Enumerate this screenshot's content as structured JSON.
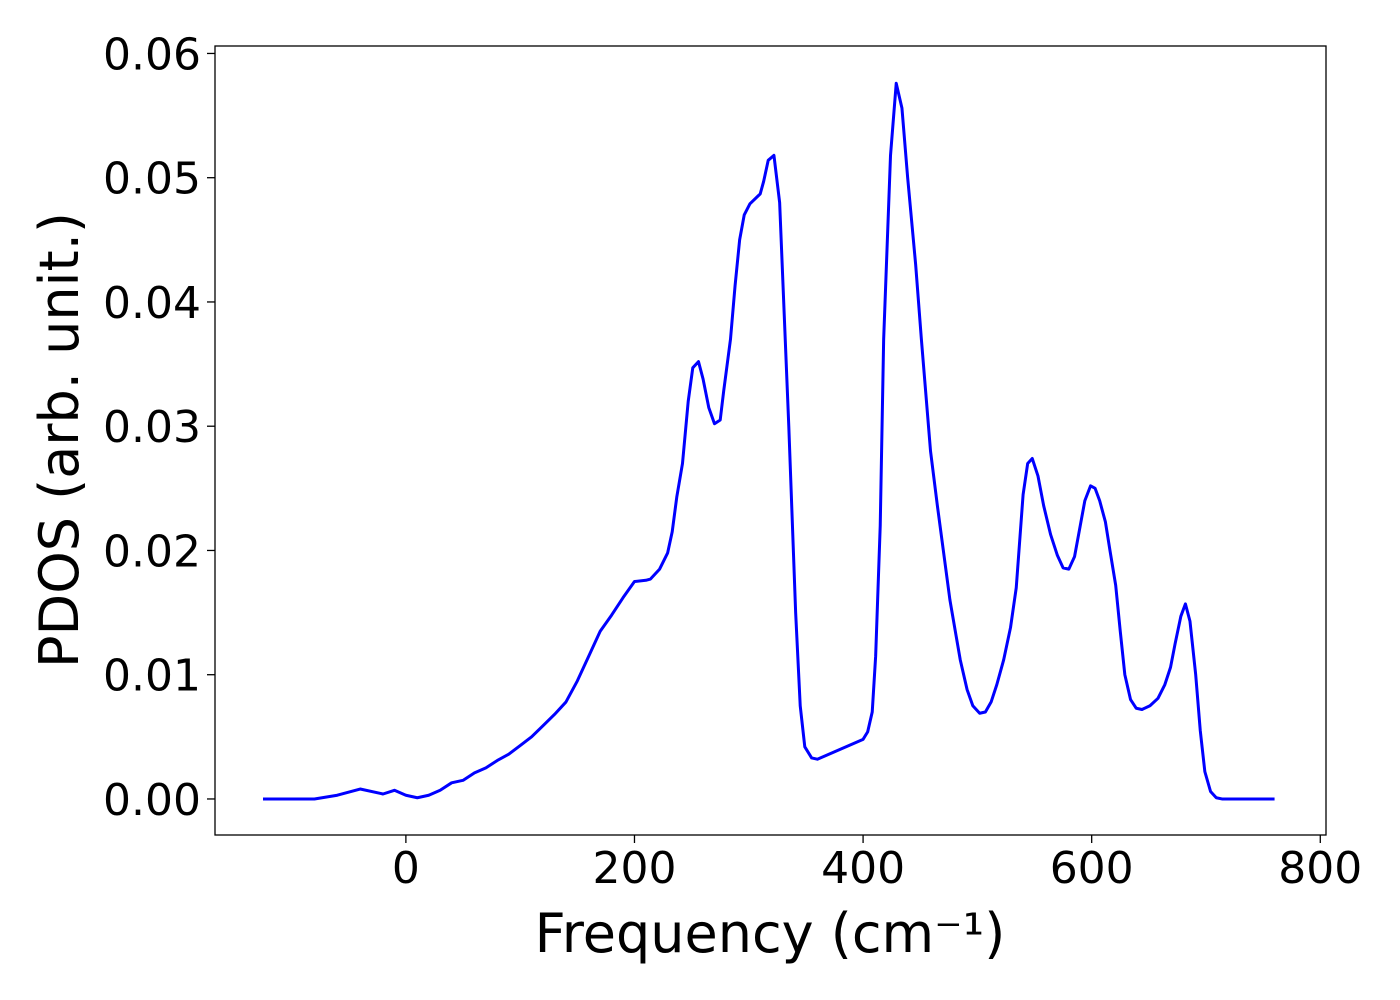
{
  "chart_data": {
    "type": "line",
    "xlabel": "Frequency (cm⁻¹)",
    "ylabel": "PDOS (arb. unit.)",
    "xlim": [
      -167,
      805
    ],
    "ylim": [
      -0.0029,
      0.0606
    ],
    "xticks": [
      0,
      200,
      400,
      600,
      800
    ],
    "yticks": [
      {
        "value": 0,
        "label": "0.00"
      },
      {
        "value": 0.01,
        "label": "0.01"
      },
      {
        "value": 0.02,
        "label": "0.02"
      },
      {
        "value": 0.03,
        "label": "0.03"
      },
      {
        "value": 0.04,
        "label": "0.04"
      },
      {
        "value": 0.05,
        "label": "0.05"
      },
      {
        "value": 0.06,
        "label": "0.06"
      }
    ],
    "series": [
      {
        "color": "#0000ff",
        "x": [
          -125,
          -80,
          -60,
          -40,
          -20,
          -10,
          0,
          10,
          20,
          30,
          40,
          50,
          60,
          70,
          80,
          90,
          100,
          110,
          120,
          130,
          140,
          150,
          160,
          170,
          180,
          190,
          200,
          210,
          214,
          222,
          229,
          233,
          237,
          242,
          247,
          251,
          256,
          260,
          265,
          270,
          275,
          278,
          284,
          288,
          292,
          296,
          301,
          310,
          313,
          317,
          322,
          327,
          331,
          335,
          341,
          345,
          349,
          355,
          360,
          400,
          404,
          408,
          411,
          415,
          418,
          424,
          429,
          434,
          439,
          446,
          451,
          459,
          465,
          476,
          485,
          491,
          496,
          502,
          507,
          512,
          517,
          523,
          529,
          534,
          540,
          544,
          548,
          553,
          558,
          564,
          570,
          575,
          580,
          585,
          590,
          594,
          599,
          603,
          607,
          612,
          616,
          621,
          625,
          629,
          634,
          639,
          644,
          651,
          658,
          664,
          669,
          673,
          678,
          682,
          686,
          691,
          695,
          699,
          704,
          709,
          714,
          760
        ],
        "values": [
          0,
          0,
          0.0003,
          0.0008,
          0.0004,
          0.0007,
          0.0003,
          0.0001,
          0.0003,
          0.0007,
          0.0013,
          0.0015,
          0.0021,
          0.0025,
          0.0031,
          0.0036,
          0.0043,
          0.005,
          0.0059,
          0.0068,
          0.0078,
          0.0095,
          0.0115,
          0.0135,
          0.0148,
          0.0162,
          0.0175,
          0.0176,
          0.0177,
          0.0185,
          0.0198,
          0.0215,
          0.0243,
          0.027,
          0.032,
          0.0347,
          0.0352,
          0.0338,
          0.0315,
          0.0302,
          0.0305,
          0.0328,
          0.037,
          0.0413,
          0.045,
          0.047,
          0.0479,
          0.0487,
          0.0497,
          0.0514,
          0.0518,
          0.048,
          0.039,
          0.03,
          0.015,
          0.0075,
          0.0042,
          0.0033,
          0.0032,
          0.0048,
          0.0054,
          0.007,
          0.0115,
          0.022,
          0.037,
          0.0518,
          0.0576,
          0.0556,
          0.05,
          0.043,
          0.037,
          0.028,
          0.0236,
          0.016,
          0.0112,
          0.0088,
          0.0075,
          0.0069,
          0.007,
          0.0078,
          0.0092,
          0.0112,
          0.0138,
          0.017,
          0.0245,
          0.027,
          0.0274,
          0.026,
          0.0236,
          0.0213,
          0.0196,
          0.0186,
          0.0185,
          0.0195,
          0.022,
          0.024,
          0.0252,
          0.025,
          0.024,
          0.0223,
          0.02,
          0.0172,
          0.0135,
          0.01,
          0.008,
          0.0073,
          0.0072,
          0.0075,
          0.0081,
          0.0092,
          0.0106,
          0.0125,
          0.0147,
          0.0157,
          0.0143,
          0.01,
          0.0055,
          0.0022,
          0.0006,
          0.0001,
          0,
          0
        ]
      }
    ]
  }
}
